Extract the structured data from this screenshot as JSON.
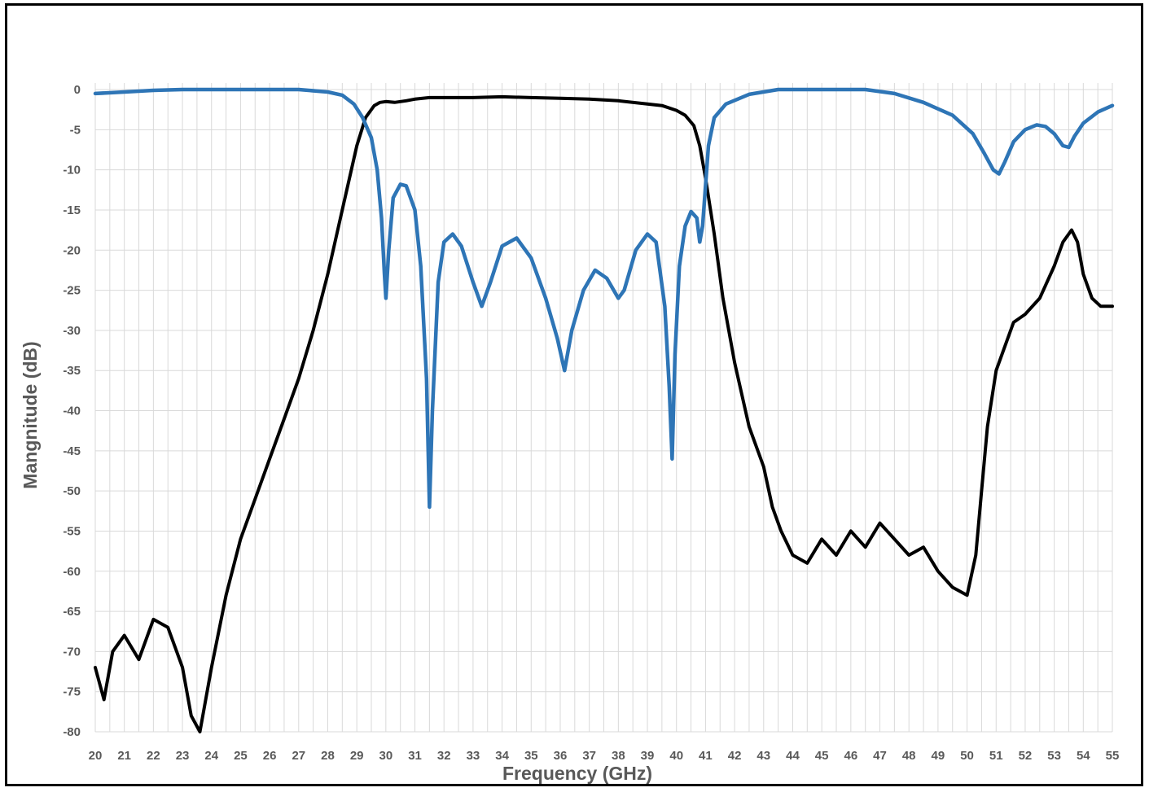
{
  "chart_data": {
    "type": "line",
    "title": "",
    "xlabel": "Frequency (GHz)",
    "ylabel": "Mangnitude (dB)",
    "xlim": [
      20,
      55
    ],
    "ylim": [
      -80,
      0
    ],
    "grid": true,
    "x_ticks": [
      20,
      21,
      22,
      23,
      24,
      25,
      26,
      27,
      28,
      29,
      30,
      31,
      32,
      33,
      34,
      35,
      36,
      37,
      38,
      39,
      40,
      41,
      42,
      43,
      44,
      45,
      46,
      47,
      48,
      49,
      50,
      51,
      52,
      53,
      54,
      55
    ],
    "x_tick_labels": [
      "20",
      "21",
      "22",
      "23",
      "24",
      "25",
      "26",
      "27",
      "28",
      "29",
      "30",
      "31",
      "32",
      "33",
      "34",
      "35",
      "36",
      "37",
      "38",
      "39",
      "40",
      "41",
      "42",
      "43",
      "44",
      "45",
      "46",
      "47",
      "48",
      "49",
      "50",
      "51",
      "52",
      "53",
      "54",
      "55"
    ],
    "y_ticks": [
      0,
      -5,
      -10,
      -15,
      -20,
      -25,
      -30,
      -35,
      -40,
      -45,
      -50,
      -55,
      -60,
      -65,
      -70,
      -75,
      -80
    ],
    "y_tick_labels": [
      "0",
      "-5",
      "-10",
      "-15",
      "-20",
      "-25",
      "-30",
      "-35",
      "-40",
      "-45",
      "-50",
      "-55",
      "-60",
      "-65",
      "-70",
      "-75",
      "-80"
    ],
    "series": [
      {
        "color": "#000000",
        "x": [
          20.0,
          20.3,
          20.6,
          21.0,
          21.5,
          22.0,
          22.5,
          23.0,
          23.3,
          23.6,
          24.0,
          24.5,
          25.0,
          25.5,
          26.0,
          26.5,
          27.0,
          27.5,
          28.0,
          28.5,
          29.0,
          29.3,
          29.6,
          29.8,
          30.0,
          30.3,
          30.7,
          31.0,
          31.5,
          32.0,
          33.0,
          34.0,
          35.0,
          36.0,
          37.0,
          38.0,
          39.0,
          39.5,
          40.0,
          40.3,
          40.6,
          40.8,
          41.0,
          41.3,
          41.6,
          42.0,
          42.5,
          43.0,
          43.3,
          43.6,
          44.0,
          44.5,
          45.0,
          45.5,
          46.0,
          46.5,
          47.0,
          47.5,
          48.0,
          48.5,
          49.0,
          49.5,
          50.0,
          50.3,
          50.5,
          50.7,
          51.0,
          51.3,
          51.6,
          52.0,
          52.5,
          53.0,
          53.3,
          53.6,
          53.8,
          54.0,
          54.3,
          54.6,
          55.0
        ],
        "y": [
          -72,
          -76,
          -70,
          -68,
          -71,
          -66,
          -67,
          -72,
          -78,
          -80,
          -72,
          -63,
          -56,
          -51,
          -46,
          -41,
          -36,
          -30,
          -23,
          -15,
          -7,
          -3.5,
          -2,
          -1.6,
          -1.5,
          -1.6,
          -1.4,
          -1.2,
          -1.0,
          -1.0,
          -1.0,
          -0.9,
          -1.0,
          -1.1,
          -1.2,
          -1.4,
          -1.8,
          -2.0,
          -2.6,
          -3.2,
          -4.5,
          -7,
          -11,
          -18,
          -26,
          -34,
          -42,
          -47,
          -52,
          -55,
          -58,
          -59,
          -56,
          -58,
          -55,
          -57,
          -54,
          -56,
          -58,
          -57,
          -60,
          -62,
          -63,
          -58,
          -50,
          -42,
          -35,
          -32,
          -29,
          -28,
          -26,
          -22,
          -19,
          -17.5,
          -19,
          -23,
          -26,
          -27,
          -27
        ]
      },
      {
        "color": "#2e75b6",
        "x": [
          20.0,
          21.0,
          22.0,
          23.0,
          24.0,
          25.0,
          26.0,
          27.0,
          28.0,
          28.5,
          28.9,
          29.2,
          29.5,
          29.7,
          29.85,
          29.95,
          30.0,
          30.1,
          30.25,
          30.5,
          30.7,
          31.0,
          31.2,
          31.4,
          31.5,
          31.6,
          31.8,
          32.0,
          32.3,
          32.6,
          33.0,
          33.3,
          33.6,
          34.0,
          34.5,
          35.0,
          35.5,
          35.9,
          36.15,
          36.4,
          36.8,
          37.2,
          37.6,
          38.0,
          38.2,
          38.6,
          39.0,
          39.3,
          39.6,
          39.75,
          39.85,
          39.95,
          40.1,
          40.3,
          40.5,
          40.7,
          40.8,
          40.9,
          41.1,
          41.3,
          41.7,
          42.5,
          43.5,
          44.5,
          45.5,
          46.5,
          47.5,
          48.5,
          49.5,
          50.2,
          50.6,
          50.9,
          51.1,
          51.3,
          51.6,
          52.0,
          52.4,
          52.7,
          53.0,
          53.3,
          53.5,
          53.7,
          54.0,
          54.5,
          55.0
        ],
        "y": [
          -0.5,
          -0.3,
          -0.1,
          0.0,
          0.1,
          0.1,
          0.1,
          0.0,
          -0.3,
          -0.7,
          -1.8,
          -3.5,
          -6,
          -10,
          -16,
          -23,
          -26,
          -20,
          -13.5,
          -11.8,
          -12,
          -15,
          -22,
          -36,
          -52,
          -40,
          -24,
          -19,
          -18,
          -19.5,
          -24,
          -27,
          -24,
          -19.5,
          -18.5,
          -21,
          -26,
          -31,
          -35,
          -30,
          -25,
          -22.5,
          -23.5,
          -26,
          -25,
          -20,
          -18,
          -19,
          -27,
          -37,
          -46,
          -33,
          -22,
          -17,
          -15.2,
          -16,
          -19,
          -17,
          -7,
          -3.5,
          -1.8,
          -0.6,
          0.1,
          0.3,
          0.2,
          0.0,
          -0.5,
          -1.6,
          -3.2,
          -5.5,
          -8,
          -10,
          -10.5,
          -9,
          -6.5,
          -5,
          -4.4,
          -4.6,
          -5.5,
          -7,
          -7.2,
          -5.8,
          -4.2,
          -2.8,
          -2.0
        ]
      }
    ]
  }
}
